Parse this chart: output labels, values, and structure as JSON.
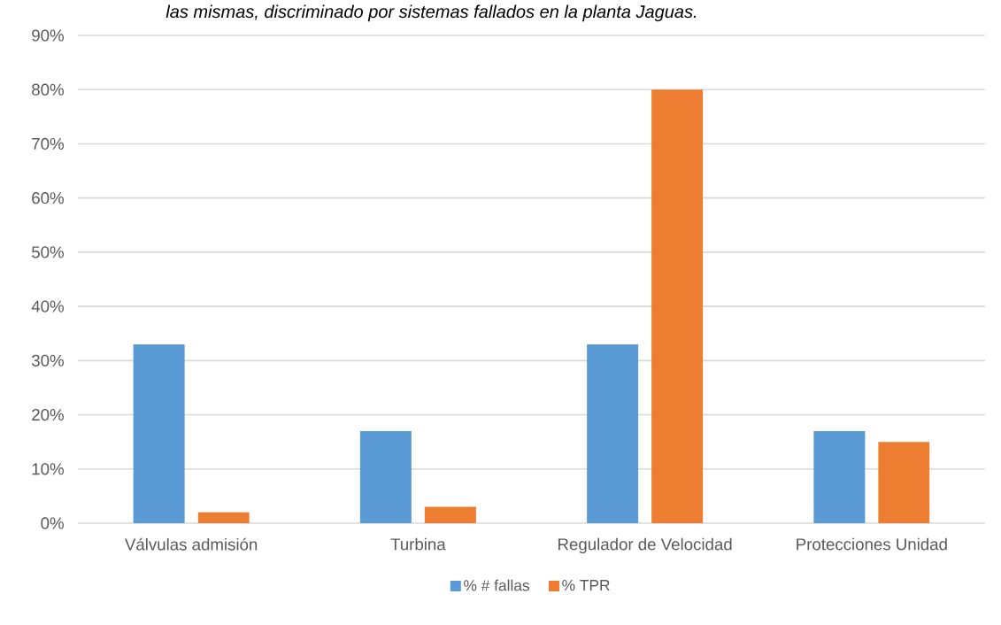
{
  "chart_data": {
    "type": "bar",
    "title": "las mismas, discriminado por sistemas fallados en la planta Jaguas.",
    "categories": [
      "Válvulas admisión",
      "Turbina",
      "Regulador de Velocidad",
      "Protecciones Unidad"
    ],
    "series": [
      {
        "name": "% # fallas",
        "color": "#5b9bd5",
        "values": [
          33,
          17,
          33,
          17
        ]
      },
      {
        "name": "% TPR",
        "color": "#ed7d31",
        "values": [
          2,
          3,
          80,
          15
        ]
      }
    ],
    "ylim": [
      0,
      90
    ],
    "yticks": [
      {
        "value": 0,
        "label": "0%"
      },
      {
        "value": 10,
        "label": "10%"
      },
      {
        "value": 20,
        "label": "20%"
      },
      {
        "value": 30,
        "label": "30%"
      },
      {
        "value": 40,
        "label": "40%"
      },
      {
        "value": 50,
        "label": "50%"
      },
      {
        "value": 60,
        "label": "60%"
      },
      {
        "value": 70,
        "label": "70%"
      },
      {
        "value": 80,
        "label": "80%"
      },
      {
        "value": 90,
        "label": "90%"
      }
    ],
    "grid": "y",
    "legend": "bottom"
  }
}
